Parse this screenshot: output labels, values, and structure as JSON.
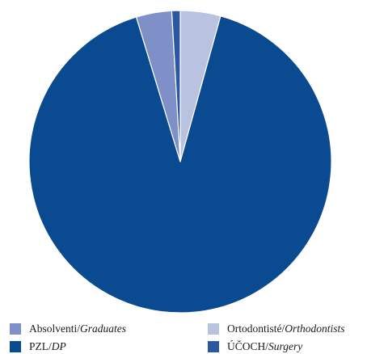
{
  "chart_data": {
    "type": "pie",
    "title": "",
    "slices": [
      {
        "label_cs": "Ortodontisté",
        "label_en": "Orthodontists",
        "value": 4.3,
        "color": "#b9c3e0"
      },
      {
        "label_cs": "PZL",
        "label_en": "DP",
        "value": 91.0,
        "color": "#0a4a90"
      },
      {
        "label_cs": "Absolventi",
        "label_en": "Graduates",
        "value": 3.8,
        "color": "#7e90c7"
      },
      {
        "label_cs": "ÚČOCH",
        "label_en": "Surgery",
        "value": 0.9,
        "color": "#2c57a3"
      }
    ],
    "legend": {
      "placement": "bottom",
      "separator": " / ",
      "order": [
        2,
        0,
        1,
        3
      ]
    }
  }
}
